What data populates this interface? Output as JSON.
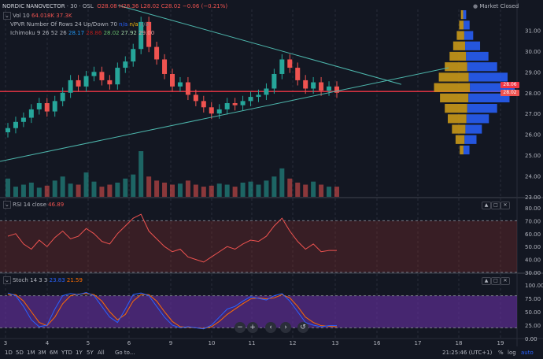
{
  "header": {
    "symbol": "NORDIC NANOVECTOR",
    "interval": "30",
    "exchange": "OSL",
    "ohlc": {
      "o": "O28.08",
      "h": "H28.36",
      "l": "L28.02",
      "c": "C28.02",
      "chg": "−0.06 (−0.21%)"
    },
    "market_status": "Market Closed"
  },
  "indicators": {
    "vol": {
      "label": "Vol 10",
      "v1": "64.018K",
      "v2": "37.3K"
    },
    "vpvr": {
      "label": "VPVR",
      "params": "Number Of Rows 24 Up/Down 70",
      "v1": "n/a",
      "v2": "n/a",
      "v3": "n/a"
    },
    "ichimoku": {
      "label": "Ichimoku",
      "params": "9 26 52 26",
      "v1": "28.17",
      "v2": "28.86",
      "v3": "28.02",
      "v4": "27.92",
      "v5": "29.00"
    },
    "rsi": {
      "label": "RSI",
      "params": "14 close",
      "value": "46.89"
    },
    "stoch": {
      "label": "Stoch",
      "params": "14 3 3",
      "k": "23.83",
      "d": "21.59"
    }
  },
  "price_boxes": {
    "upper": "28.06",
    "lower": "28.02"
  },
  "chart_data": [
    {
      "type": "candlestick",
      "title": "NORDIC NANOVECTOR",
      "ylim": [
        23.0,
        32.0
      ],
      "yticks": [
        "23.00",
        "24.00",
        "25.00",
        "26.00",
        "27.00",
        "28.00",
        "29.00",
        "30.00",
        "31.00"
      ],
      "xticks": [
        "3",
        "4",
        "5",
        "6",
        "9",
        "10",
        "11",
        "12",
        "13",
        "16",
        "17",
        "18",
        "19"
      ],
      "x_start": "3",
      "x_end": "13",
      "series": [
        {
          "name": "close",
          "values": [
            26.3,
            26.6,
            26.8,
            27.2,
            27.5,
            27.1,
            27.6,
            28.0,
            28.6,
            28.3,
            28.8,
            29.0,
            28.6,
            28.4,
            29.2,
            29.5,
            30.1,
            31.4,
            30.2,
            29.6,
            28.9,
            28.3,
            28.5,
            27.9,
            27.6,
            27.3,
            27.0,
            27.2,
            27.5,
            27.4,
            27.6,
            27.8,
            27.9,
            28.2,
            28.9,
            29.6,
            29.2,
            28.6,
            28.2,
            28.5,
            28.1,
            28.3,
            28.0
          ]
        }
      ],
      "horizontal_line": 28.06,
      "volume_profile": {
        "prices": [
          25.0,
          25.5,
          26.0,
          26.5,
          27.0,
          27.5,
          28.0,
          28.5,
          29.0,
          29.5,
          30.0,
          30.5,
          31.0,
          31.5
        ],
        "up": [
          5,
          12,
          18,
          25,
          30,
          38,
          48,
          40,
          30,
          22,
          16,
          10,
          6,
          3
        ],
        "down": [
          8,
          16,
          22,
          30,
          40,
          55,
          60,
          52,
          40,
          30,
          20,
          12,
          8,
          4
        ]
      },
      "volume": [
        18,
        10,
        12,
        14,
        9,
        11,
        16,
        20,
        13,
        12,
        24,
        15,
        10,
        12,
        14,
        18,
        22,
        45,
        20,
        16,
        14,
        12,
        13,
        16,
        12,
        10,
        11,
        13,
        12,
        10,
        14,
        15,
        12,
        16,
        20,
        28,
        18,
        14,
        12,
        15,
        12,
        10,
        10
      ]
    },
    {
      "type": "line",
      "title": "RSI 14 close",
      "ylim": [
        30,
        80
      ],
      "yticks": [
        "30.00",
        "40.00",
        "50.00",
        "60.00",
        "70.00",
        "80.00"
      ],
      "bands": [
        30,
        70
      ],
      "series": [
        {
          "name": "RSI",
          "values": [
            58,
            60,
            52,
            48,
            55,
            50,
            57,
            62,
            56,
            58,
            64,
            60,
            54,
            52,
            60,
            66,
            72,
            75,
            62,
            56,
            50,
            46,
            48,
            42,
            40,
            38,
            42,
            46,
            50,
            48,
            52,
            55,
            54,
            58,
            66,
            72,
            62,
            54,
            48,
            52,
            46,
            47,
            47
          ]
        }
      ]
    },
    {
      "type": "line",
      "title": "Stoch 14 3 3",
      "ylim": [
        0,
        100
      ],
      "yticks": [
        "0.00",
        "25.00",
        "50.00",
        "75.00",
        "100.00"
      ],
      "bands": [
        20,
        80
      ],
      "series": [
        {
          "name": "%K",
          "values": [
            85,
            80,
            60,
            35,
            22,
            25,
            55,
            80,
            84,
            82,
            86,
            80,
            60,
            40,
            30,
            55,
            82,
            85,
            80,
            60,
            40,
            25,
            20,
            22,
            20,
            18,
            25,
            40,
            55,
            60,
            70,
            78,
            75,
            72,
            80,
            84,
            70,
            50,
            30,
            25,
            22,
            24,
            24
          ]
        },
        {
          "name": "%D",
          "values": [
            82,
            82,
            70,
            50,
            30,
            24,
            40,
            65,
            80,
            83,
            84,
            82,
            70,
            50,
            35,
            45,
            70,
            82,
            82,
            70,
            50,
            32,
            22,
            21,
            20,
            19,
            22,
            32,
            45,
            55,
            65,
            74,
            76,
            74,
            76,
            82,
            76,
            60,
            40,
            30,
            24,
            23,
            22
          ]
        }
      ]
    }
  ],
  "timeframes": [
    "1D",
    "5D",
    "1M",
    "3M",
    "6M",
    "YTD",
    "1Y",
    "5Y",
    "All",
    "Go to..."
  ],
  "footer": {
    "time": "21:25:46 (UTC+1)",
    "pct": "%",
    "log": "log",
    "auto": "auto"
  }
}
